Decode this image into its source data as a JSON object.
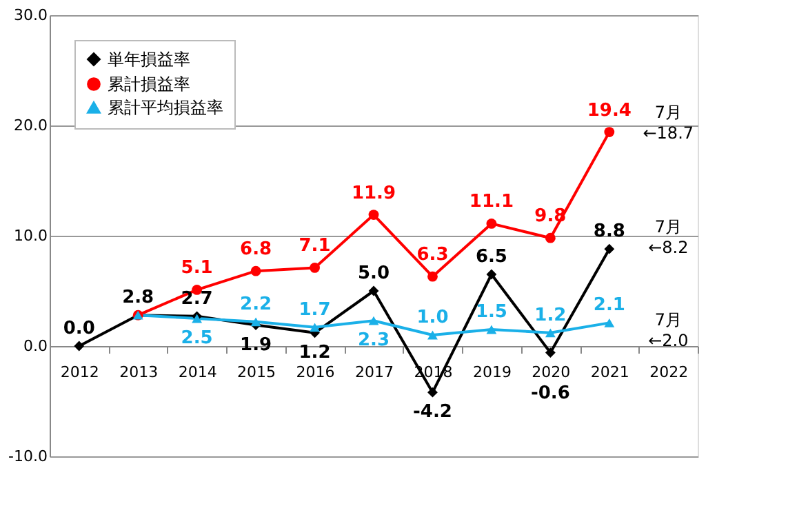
{
  "chart_data": {
    "type": "line",
    "categories": [
      "2012",
      "2013",
      "2014",
      "2015",
      "2016",
      "2017",
      "2018",
      "2019",
      "2020",
      "2021",
      "2022"
    ],
    "series": [
      {
        "name": "単年損益率",
        "color": "#000000",
        "marker": "diamond",
        "values": [
          0.0,
          2.8,
          2.7,
          1.9,
          1.2,
          5.0,
          -4.2,
          6.5,
          -0.6,
          8.8,
          null
        ],
        "value_labels": [
          "0.0",
          "2.8",
          "2.7",
          "1.9",
          "1.2",
          "5.0",
          "-4.2",
          "6.5",
          "-0.6",
          "8.8",
          null
        ]
      },
      {
        "name": "累計損益率",
        "color": "#ff0000",
        "marker": "circle",
        "values": [
          null,
          2.8,
          5.1,
          6.8,
          7.1,
          11.9,
          6.3,
          11.1,
          9.8,
          19.4,
          null
        ],
        "value_labels": [
          null,
          null,
          "5.1",
          "6.8",
          "7.1",
          "11.9",
          "6.3",
          "11.1",
          "9.8",
          "19.4",
          null
        ]
      },
      {
        "name": "累計平均損益率",
        "color": "#1ab0e8",
        "marker": "triangle",
        "values": [
          null,
          2.8,
          2.5,
          2.2,
          1.7,
          2.3,
          1.0,
          1.5,
          1.2,
          2.1,
          null
        ],
        "value_labels": [
          null,
          null,
          "2.5",
          "2.2",
          "1.7",
          "2.3",
          "1.0",
          "1.5",
          "1.2",
          "2.1",
          null
        ]
      }
    ],
    "ylim": [
      -10,
      30
    ],
    "yticks": [
      {
        "value": -10,
        "label": "-10.0"
      },
      {
        "value": 0,
        "label": "0.0"
      },
      {
        "value": 10,
        "label": "10.0"
      },
      {
        "value": 20,
        "label": "20.0"
      },
      {
        "value": 30,
        "label": "30.0"
      }
    ],
    "grid": "y",
    "legend": "top left",
    "annotations": [
      "7月\n←18.7",
      "7月\n←8.2",
      "7月\n←2.0"
    ]
  }
}
